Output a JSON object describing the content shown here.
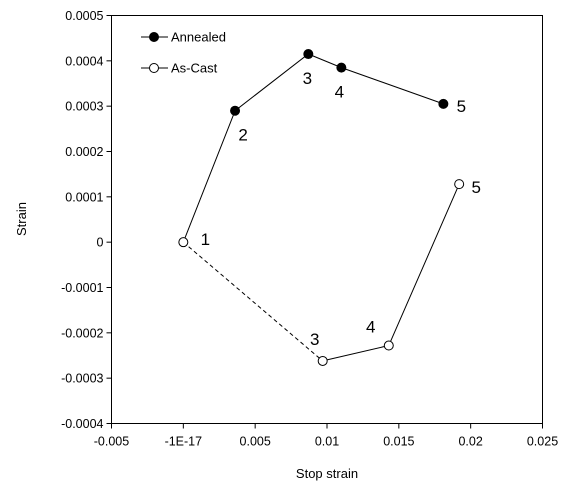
{
  "chart_data": {
    "type": "scatter",
    "xlabel": "Stop strain",
    "ylabel": "Strain",
    "xlim": [
      -0.005,
      0.025
    ],
    "ylim": [
      -0.0004,
      0.0005
    ],
    "x_tick_labels": [
      "-0.005",
      "-1E-17",
      "0.005",
      "0.01",
      "0.015",
      "0.02",
      "0.025"
    ],
    "y_tick_labels": [
      "0.0005",
      "0.0004",
      "0.0003",
      "0.0002",
      "0.0001",
      "0",
      "-0.0001",
      "-0.0002",
      "-0.0003",
      "-0.0004"
    ],
    "legend_position": "top-left",
    "grid": false,
    "series": [
      {
        "name": "Annealed",
        "marker": "filled-circle",
        "color": "#000000",
        "points": [
          {
            "x": 0.0,
            "y": 0.0,
            "label": "1"
          },
          {
            "x": 0.0036,
            "y": 0.00029,
            "label": "2"
          },
          {
            "x": 0.0087,
            "y": 0.000415,
            "label": "3"
          },
          {
            "x": 0.011,
            "y": 0.000385,
            "label": "4"
          },
          {
            "x": 0.0181,
            "y": 0.000305,
            "label": "5"
          }
        ]
      },
      {
        "name": "As-Cast",
        "marker": "open-circle",
        "color": "#000000",
        "points": [
          {
            "x": 0.0,
            "y": 0.0,
            "label": ""
          },
          {
            "x": 0.0097,
            "y": -0.000262,
            "label": "3"
          },
          {
            "x": 0.0143,
            "y": -0.000228,
            "label": "4"
          },
          {
            "x": 0.0192,
            "y": 0.000128,
            "label": "5"
          }
        ]
      }
    ],
    "connector": {
      "style": "dashed",
      "from_x": 0.0,
      "from_y": 0.0,
      "to_x": 0.0097,
      "to_y": -0.000262
    }
  }
}
